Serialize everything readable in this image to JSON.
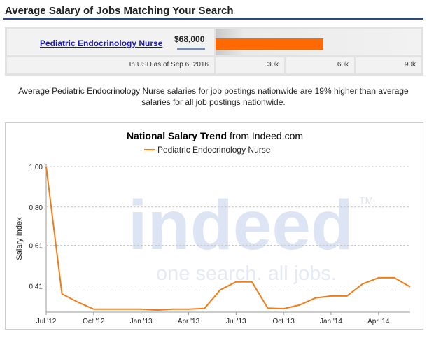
{
  "header": {
    "title": "Average Salary of Jobs Matching Your Search"
  },
  "salary_row": {
    "job_title": "Pediatric Endocrinology Nurse",
    "salary": "$68,000",
    "salary_value": 68000,
    "bar_max": 100000,
    "usd_note": "In USD as of Sep 6, 2016",
    "scale_labels": [
      "30k",
      "60k",
      "90k"
    ],
    "bar_color": "#ff6a00"
  },
  "comparison_text": "Average Pediatric Endocrinology Nurse salaries for job postings nationwide are 19% higher than average salaries for all job postings nationwide.",
  "watermark": {
    "logo": "indeed",
    "tagline": "one search. all jobs.",
    "tm": "TM"
  },
  "chart_data": {
    "type": "line",
    "title": "National Salary Trend",
    "title_suffix": "from Indeed.com",
    "ylabel": "Salary Index",
    "xlabel": "",
    "y_ticks": [
      "1.00",
      "0.80",
      "0.61",
      "0.41"
    ],
    "y_tick_values": [
      1.0,
      0.8,
      0.61,
      0.41
    ],
    "ylim": [
      0.28,
      1.0
    ],
    "x_tick_labels": [
      "Jul '12",
      "Oct '12",
      "Jan '13",
      "Apr '13",
      "Jul '13",
      "Oct '13",
      "Jan '14",
      "Apr '14"
    ],
    "x_tick_positions": [
      0,
      3,
      6,
      9,
      12,
      15,
      18,
      21
    ],
    "xlim": [
      0,
      23
    ],
    "grid": true,
    "legend_position": "top-center",
    "series": [
      {
        "name": "Pediatric Endocrinology Nurse",
        "color": "#f07d1a",
        "x": [
          0,
          1,
          2,
          3,
          4,
          5,
          6,
          7,
          8,
          9,
          10,
          11,
          12,
          13,
          14,
          15,
          16,
          17,
          18,
          19,
          20,
          21,
          22,
          23
        ],
        "values": [
          1.0,
          0.37,
          0.33,
          0.295,
          0.295,
          0.295,
          0.295,
          0.29,
          0.295,
          0.295,
          0.298,
          0.39,
          0.43,
          0.43,
          0.3,
          0.297,
          0.315,
          0.35,
          0.36,
          0.36,
          0.42,
          0.45,
          0.45,
          0.405
        ]
      }
    ]
  }
}
